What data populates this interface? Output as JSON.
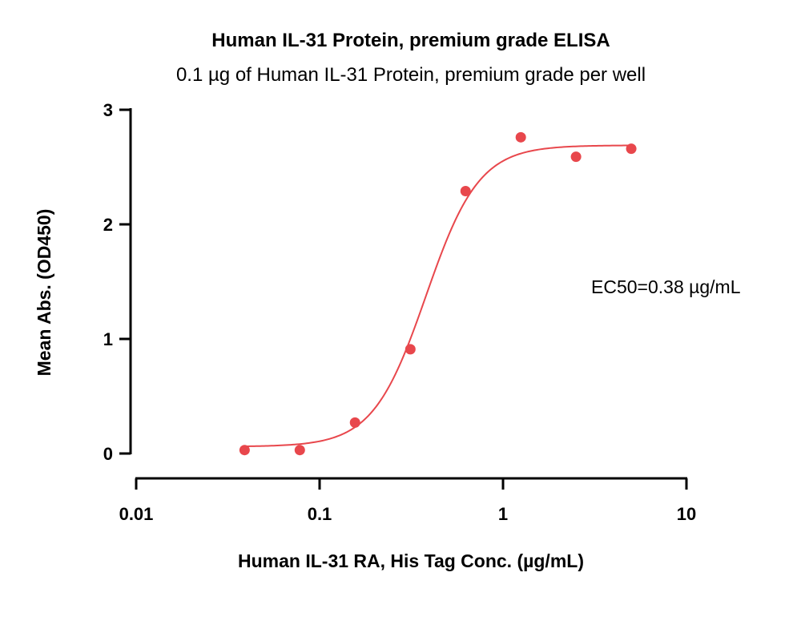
{
  "chart_data": {
    "type": "scatter",
    "title": "Human IL-31 Protein, premium grade ELISA",
    "subtitle": "0.1 µg of Human IL-31 Protein, premium grade per well",
    "xlabel": "Human IL-31 RA, His Tag Conc. (µg/mL)",
    "ylabel": "Mean Abs. (OD450)",
    "x_scale": "log",
    "xlim": [
      0.01,
      10
    ],
    "ylim": [
      0,
      3
    ],
    "x_ticks": [
      "0.01",
      "0.1",
      "1",
      "10"
    ],
    "y_ticks": [
      "0",
      "1",
      "2",
      "3"
    ],
    "color": "#e8474c",
    "points": [
      {
        "x": 0.039,
        "y": 0.03
      },
      {
        "x": 0.078,
        "y": 0.03
      },
      {
        "x": 0.156,
        "y": 0.27
      },
      {
        "x": 0.3125,
        "y": 0.91
      },
      {
        "x": 0.625,
        "y": 2.29
      },
      {
        "x": 1.25,
        "y": 2.76
      },
      {
        "x": 2.5,
        "y": 2.59
      },
      {
        "x": 5,
        "y": 2.66
      }
    ],
    "fit": {
      "bottom": 0.06,
      "top": 2.69,
      "ec50": 0.38,
      "hill": 3.0,
      "x_range": [
        0.039,
        5
      ]
    },
    "annotation": "EC50=0.38 µg/mL",
    "grid": false,
    "legend": "none"
  }
}
